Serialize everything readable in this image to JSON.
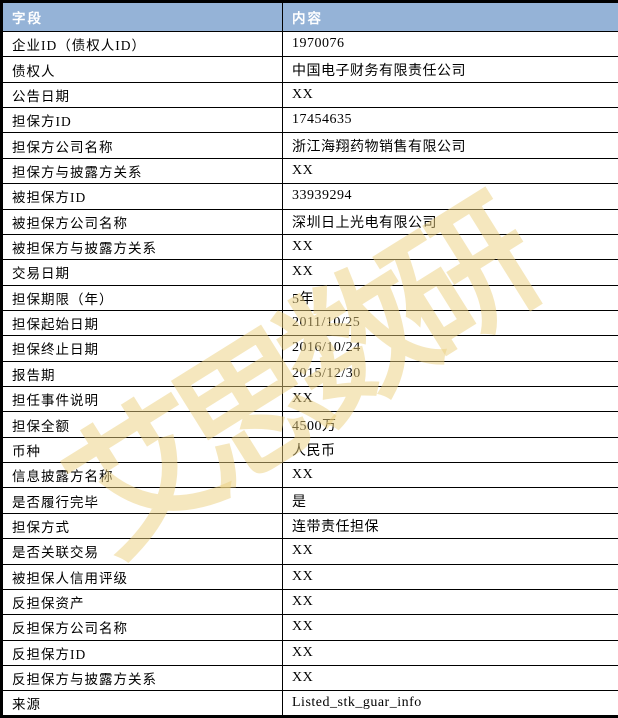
{
  "watermark": {
    "text": "艾思数研",
    "color_hex": "#ECD07E"
  },
  "table": {
    "header_bg": "#95B3D7",
    "header_text_color": "#FFFFFF",
    "border_color": "#000000",
    "columns": [
      {
        "label": "字段"
      },
      {
        "label": "内容"
      }
    ],
    "rows": [
      {
        "field": "企业ID（债权人ID）",
        "value": "1970076"
      },
      {
        "field": "债权人",
        "value": "中国电子财务有限责任公司"
      },
      {
        "field": "公告日期",
        "value": "XX"
      },
      {
        "field": "担保方ID",
        "value": "17454635"
      },
      {
        "field": "担保方公司名称",
        "value": "浙江海翔药物销售有限公司"
      },
      {
        "field": "担保方与披露方关系",
        "value": "XX"
      },
      {
        "field": "被担保方ID",
        "value": "33939294"
      },
      {
        "field": "被担保方公司名称",
        "value": "深圳日上光电有限公司"
      },
      {
        "field": "被担保方与披露方关系",
        "value": "XX"
      },
      {
        "field": "交易日期",
        "value": "XX"
      },
      {
        "field": "担保期限（年）",
        "value": "5年"
      },
      {
        "field": "担保起始日期",
        "value": "2011/10/25"
      },
      {
        "field": "担保终止日期",
        "value": "2016/10/24"
      },
      {
        "field": "报告期",
        "value": "2015/12/30"
      },
      {
        "field": "担任事件说明",
        "value": "XX"
      },
      {
        "field": "担保全额",
        "value": "4500万"
      },
      {
        "field": "币种",
        "value": "人民币"
      },
      {
        "field": "信息披露方名称",
        "value": "XX"
      },
      {
        "field": "是否履行完毕",
        "value": "是"
      },
      {
        "field": "担保方式",
        "value": "连带责任担保"
      },
      {
        "field": "是否关联交易",
        "value": "XX"
      },
      {
        "field": "被担保人信用评级",
        "value": "XX"
      },
      {
        "field": "反担保资产",
        "value": "XX"
      },
      {
        "field": "反担保方公司名称",
        "value": "XX"
      },
      {
        "field": "反担保方ID",
        "value": "XX"
      },
      {
        "field": "反担保方与披露方关系",
        "value": "XX"
      },
      {
        "field": "来源",
        "value": "Listed_stk_guar_info"
      }
    ]
  }
}
